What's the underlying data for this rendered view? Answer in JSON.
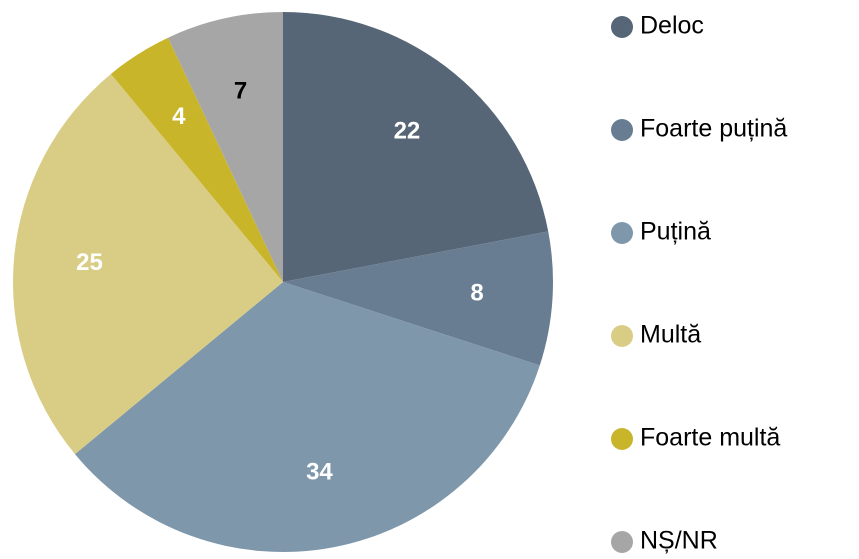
{
  "chart_data": {
    "type": "pie",
    "categories": [
      "Deloc",
      "Foarte puțină",
      "Puțină",
      "Multă",
      "Foarte multă",
      "NȘ/NR"
    ],
    "values": [
      22,
      8,
      34,
      25,
      4,
      7
    ],
    "colors": [
      "#566676",
      "#687d91",
      "#7f97ab",
      "#d9cd86",
      "#c9b52a",
      "#a6a6a6"
    ],
    "label_colors": [
      "#ffffff",
      "#ffffff",
      "#ffffff",
      "#ffffff",
      "#ffffff",
      "#000000"
    ],
    "legend": "right"
  }
}
